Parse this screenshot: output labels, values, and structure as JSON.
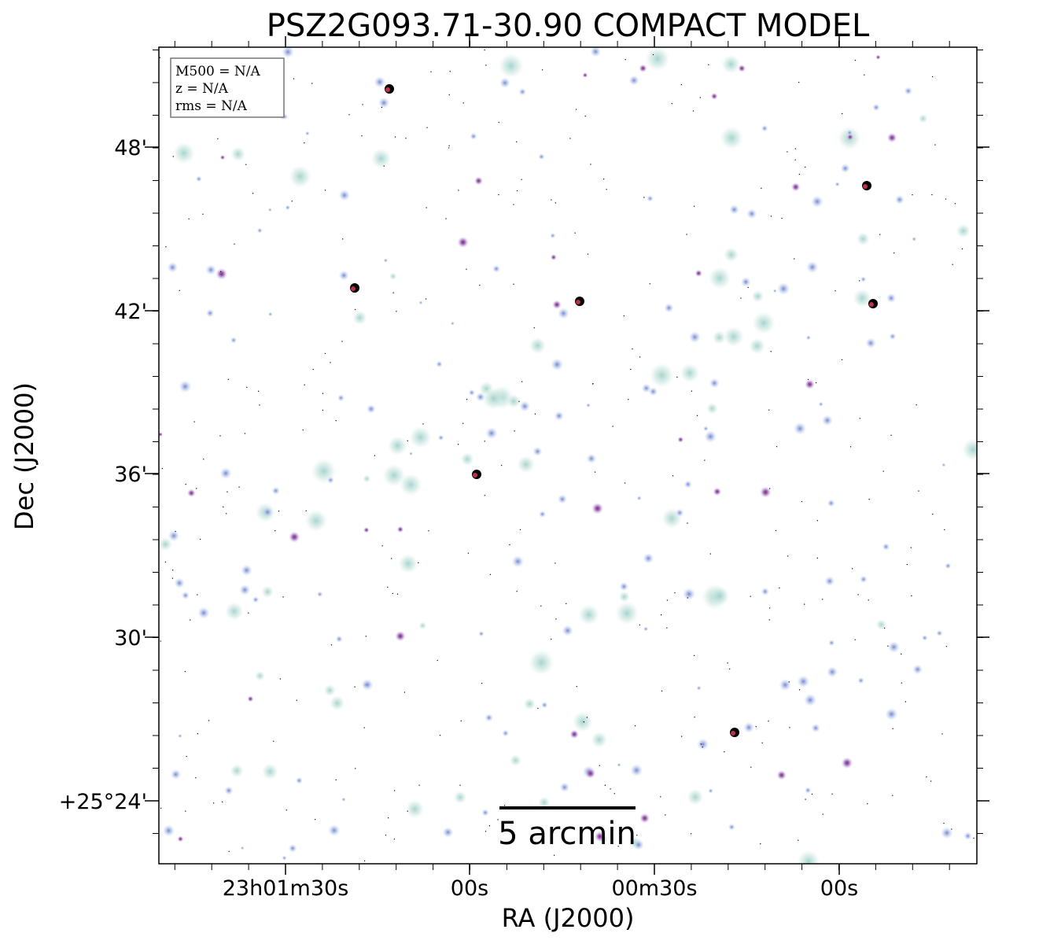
{
  "title": "PSZ2G093.71-30.90 COMPACT MODEL",
  "x_axis_label": "RA (J2000)",
  "y_axis_label": "Dec (J2000)",
  "x_ticks": [
    "23h01m30s",
    "00s",
    "00m30s",
    "00s"
  ],
  "y_ticks": [
    "48'",
    "42'",
    "36'",
    "30'",
    "+25°24'"
  ],
  "info_box": {
    "line1": "M500 = N/A",
    "line2": "z = N/A",
    "line3": "rms = N/A"
  },
  "scale_bar_label": "5 arcmin",
  "colors": {
    "background": "#ffffff",
    "halo_teal": "#cfe8e2",
    "halo_blue": "#b9c9ea",
    "core_purple": "#8c4aa8",
    "core_red": "#c0304a",
    "bright_source": "#000000"
  }
}
